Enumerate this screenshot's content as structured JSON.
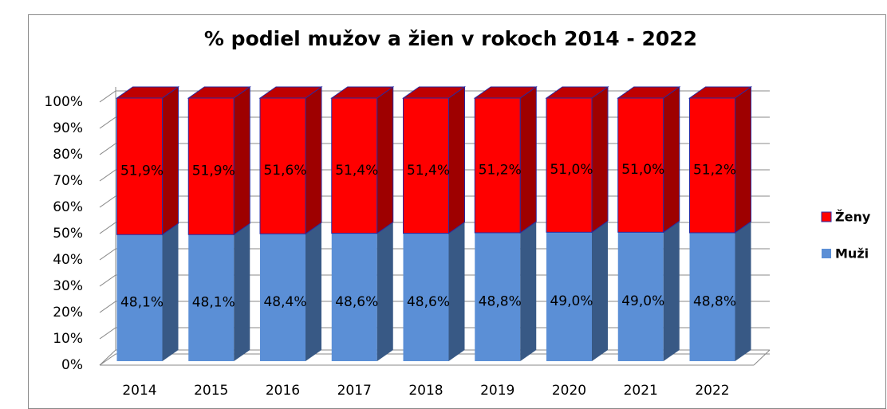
{
  "chart_data": {
    "type": "bar3d_stacked",
    "title": "% podiel mužov a žien v rokoch 2014 - 2022",
    "categories": [
      "2014",
      "2015",
      "2016",
      "2017",
      "2018",
      "2019",
      "2020",
      "2021",
      "2022"
    ],
    "series": [
      {
        "name": "Muži",
        "color": "#5b8fd6",
        "values": [
          48.1,
          48.1,
          48.4,
          48.6,
          48.6,
          48.8,
          49.0,
          49.0,
          48.8
        ],
        "value_labels": [
          "48,1%",
          "48,1%",
          "48,4%",
          "48,6%",
          "48,6%",
          "48,8%",
          "49,0%",
          "49,0%",
          "48,8%"
        ]
      },
      {
        "name": "Ženy",
        "color": "#ff0000",
        "values": [
          51.9,
          51.9,
          51.6,
          51.4,
          51.4,
          51.2,
          51.0,
          51.0,
          51.2
        ],
        "value_labels": [
          "51,9%",
          "51,9%",
          "51,6%",
          "51,4%",
          "51,4%",
          "51,2%",
          "51,0%",
          "51,0%",
          "51,2%"
        ]
      }
    ],
    "ylim": [
      0,
      100
    ],
    "yticks": [
      {
        "value": 0,
        "label": "0%"
      },
      {
        "value": 10,
        "label": "10%"
      },
      {
        "value": 20,
        "label": "20%"
      },
      {
        "value": 30,
        "label": "30%"
      },
      {
        "value": 40,
        "label": "40%"
      },
      {
        "value": 50,
        "label": "50%"
      },
      {
        "value": 60,
        "label": "60%"
      },
      {
        "value": 70,
        "label": "70%"
      },
      {
        "value": 80,
        "label": "80%"
      },
      {
        "value": 90,
        "label": "90%"
      },
      {
        "value": 100,
        "label": "100%"
      }
    ],
    "grid": true,
    "legend": "right"
  }
}
